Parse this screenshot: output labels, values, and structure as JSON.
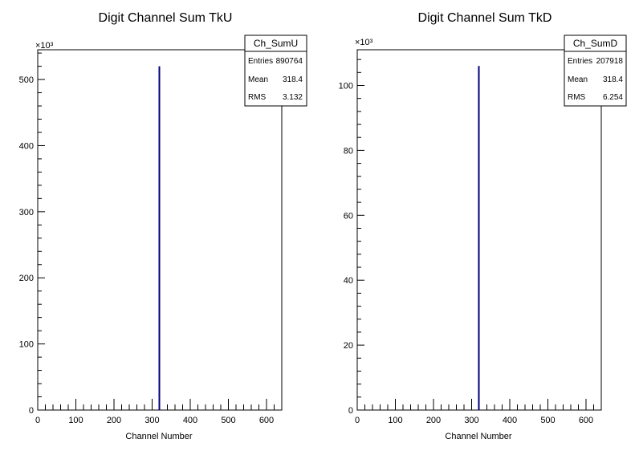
{
  "chart_data": [
    {
      "type": "bar",
      "title": "Digit Channel Sum TkU",
      "xlabel": "Channel Number",
      "ylabel": "",
      "y_multiplier_label": "×10³",
      "xlim": [
        0,
        640
      ],
      "ylim": [
        0,
        545
      ],
      "xticks": [
        0,
        100,
        200,
        300,
        400,
        500,
        600
      ],
      "yticks": [
        0,
        100,
        200,
        300,
        400,
        500
      ],
      "x": [
        320
      ],
      "values": [
        520
      ],
      "color": "#00007f",
      "grid": false,
      "stats": {
        "name": "Ch_SumU",
        "rows": [
          {
            "label": "Entries",
            "value": "890764"
          },
          {
            "label": "Mean",
            "value": "318.4"
          },
          {
            "label": "RMS",
            "value": "3.132"
          }
        ]
      }
    },
    {
      "type": "bar",
      "title": "Digit Channel Sum TkD",
      "xlabel": "Channel Number",
      "ylabel": "",
      "y_multiplier_label": "×10³",
      "xlim": [
        0,
        640
      ],
      "ylim": [
        0,
        111
      ],
      "xticks": [
        0,
        100,
        200,
        300,
        400,
        500,
        600
      ],
      "yticks": [
        0,
        20,
        40,
        60,
        80,
        100
      ],
      "x": [
        320
      ],
      "values": [
        106
      ],
      "color": "#00007f",
      "grid": false,
      "stats": {
        "name": "Ch_SumD",
        "rows": [
          {
            "label": "Entries",
            "value": "207918"
          },
          {
            "label": "Mean",
            "value": "318.4"
          },
          {
            "label": "RMS",
            "value": "6.254"
          }
        ]
      }
    }
  ]
}
